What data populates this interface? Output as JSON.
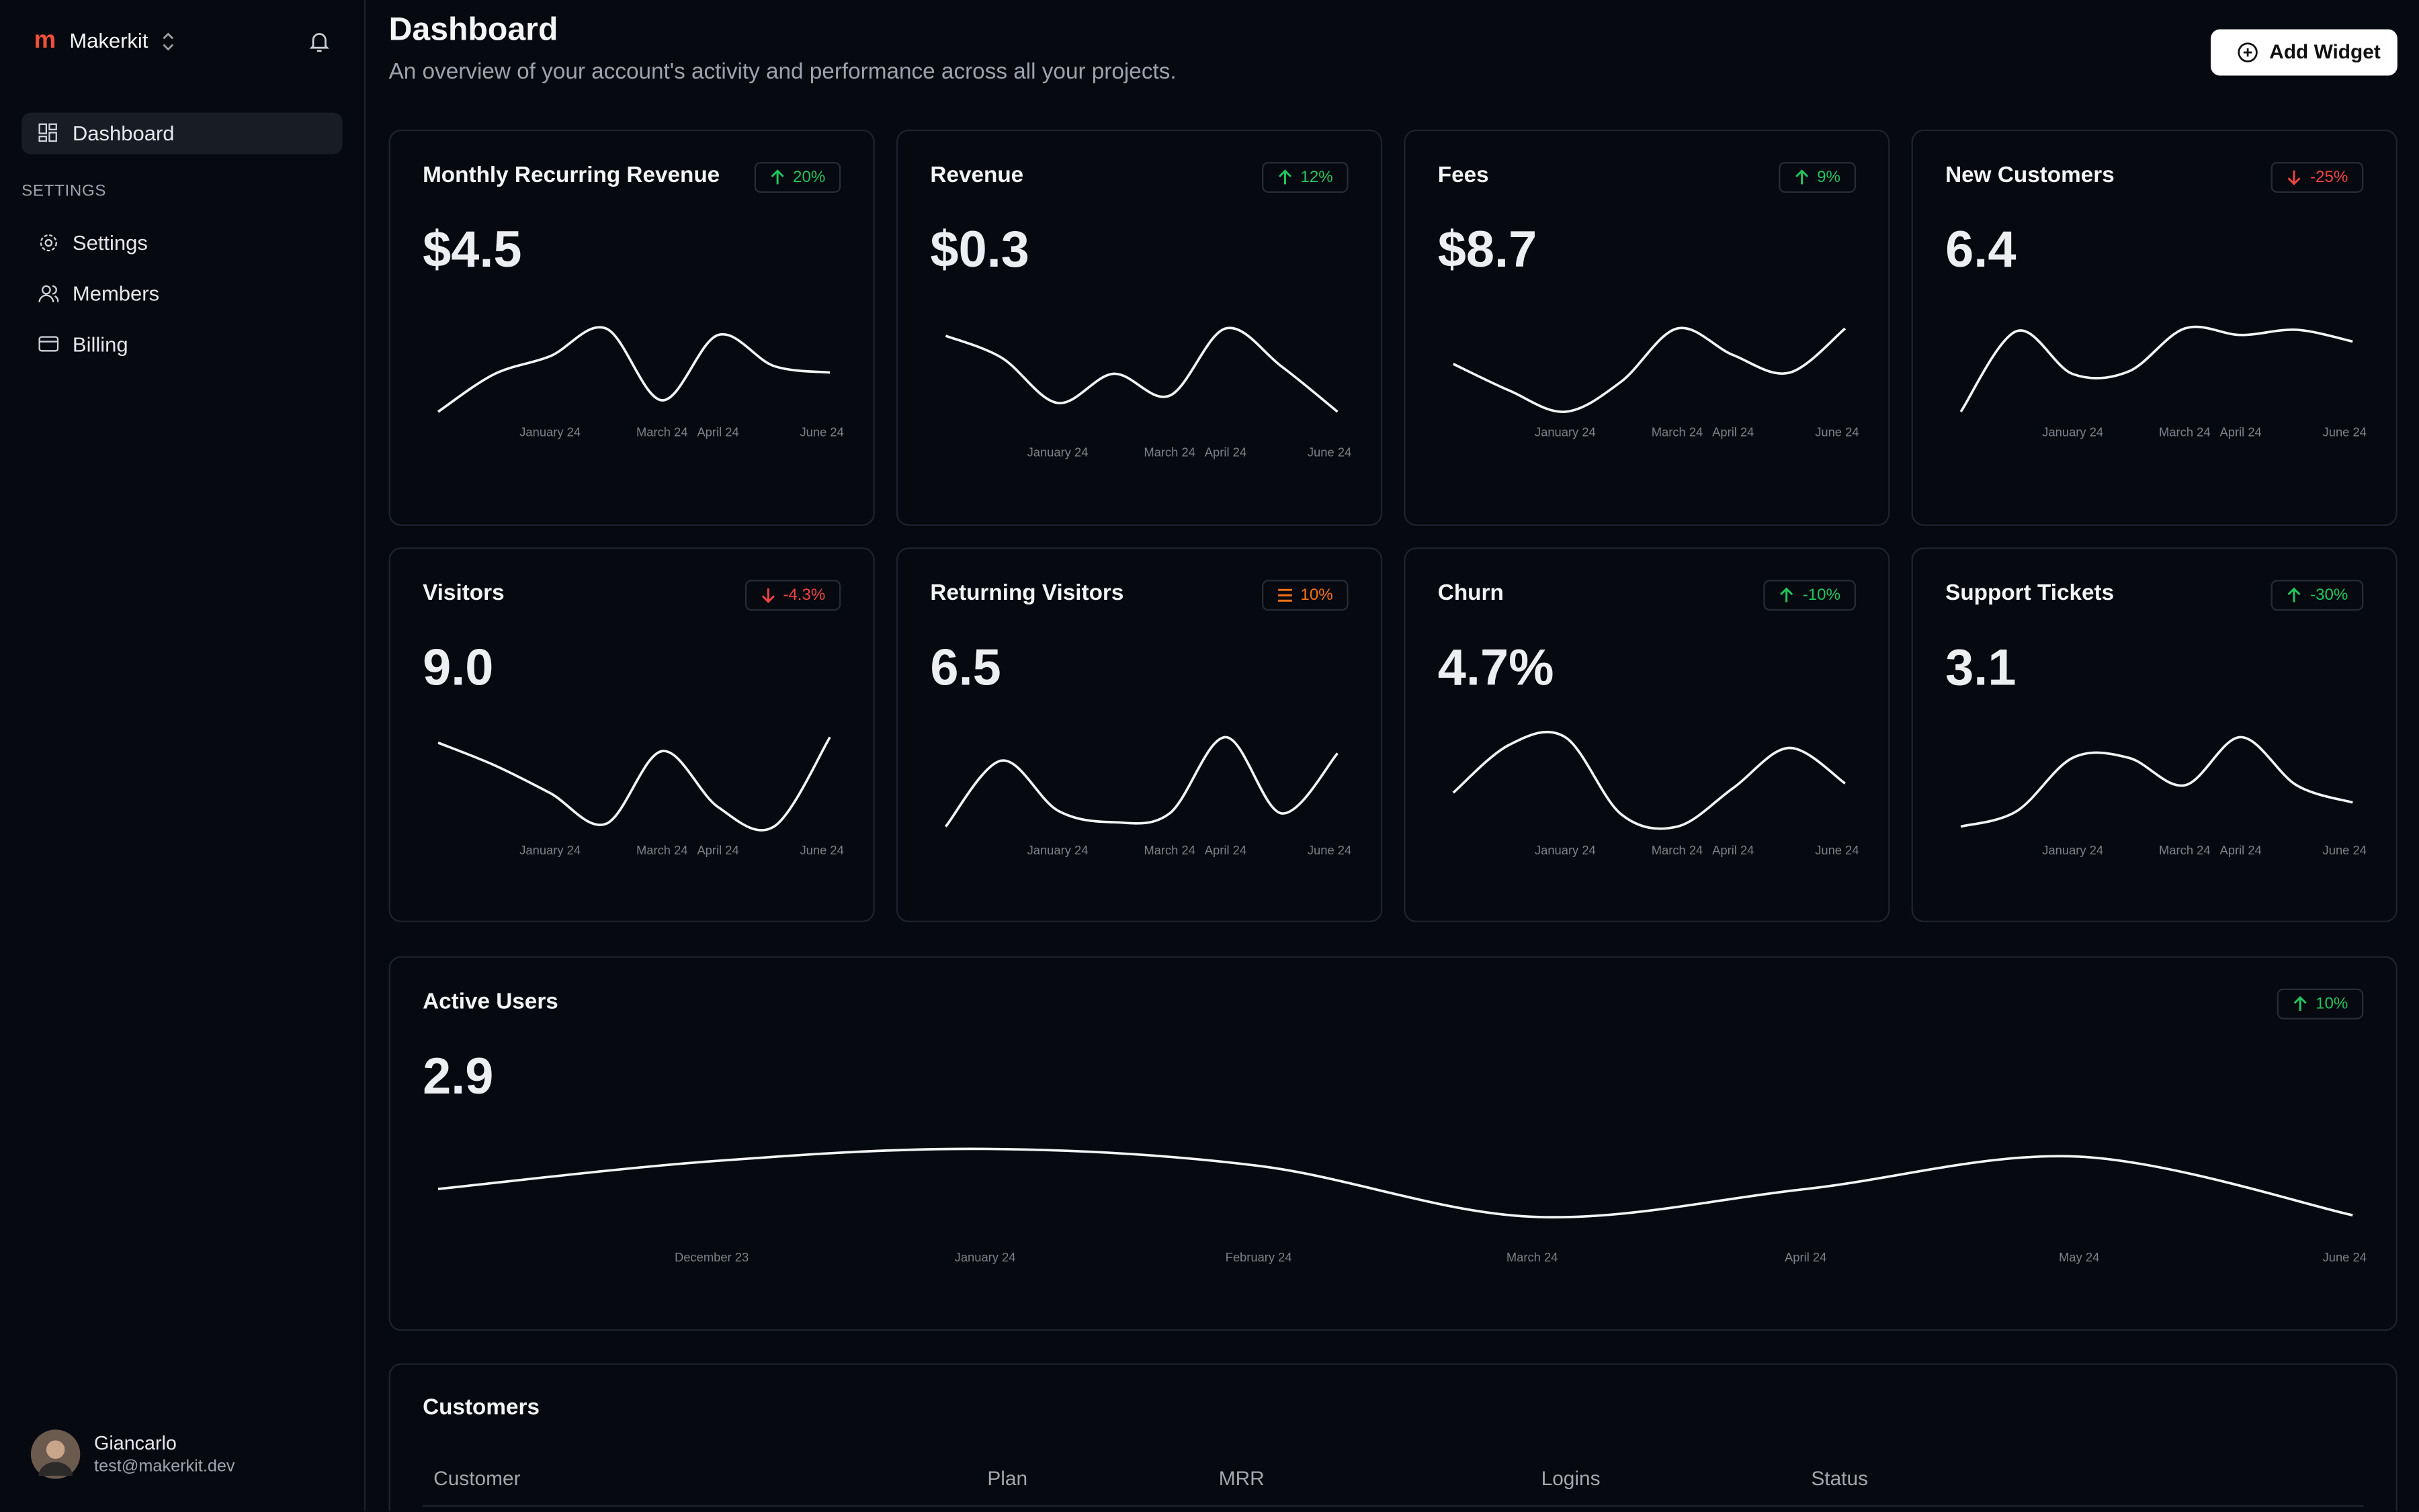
{
  "sidebar": {
    "brand": "Makerkit",
    "nav": [
      "Dashboard"
    ],
    "section_label": "SETTINGS",
    "settings_nav": [
      "Settings",
      "Members",
      "Billing"
    ],
    "user": {
      "name": "Giancarlo",
      "email": "test@makerkit.dev"
    }
  },
  "header": {
    "title": "Dashboard",
    "subtitle": "An overview of your account's activity and performance across all your projects.",
    "button": "Add Widget"
  },
  "chart_data": [
    {
      "type": "line",
      "title": "Monthly Recurring Revenue",
      "value_text": "$4.5",
      "badge": "20%",
      "trend": "up",
      "categories": [
        null,
        null,
        "January 24",
        null,
        "March 24",
        "April 24",
        null,
        "June 24"
      ],
      "values": [
        15,
        38,
        49,
        66,
        22,
        62,
        43,
        39
      ]
    },
    {
      "type": "line",
      "title": "Revenue",
      "value_text": "$0.3",
      "badge": "12%",
      "trend": "up",
      "categories": [
        null,
        null,
        "January 24",
        null,
        "March 24",
        "April 24",
        null,
        "June 24"
      ],
      "values": [
        73,
        58,
        27,
        47,
        32,
        78,
        52,
        21
      ]
    },
    {
      "type": "line",
      "title": "Fees",
      "value_text": "$8.7",
      "badge": "9%",
      "trend": "up",
      "categories": [
        null,
        null,
        "January 24",
        null,
        "March 24",
        "April 24",
        null,
        "June 24"
      ],
      "values": [
        45,
        30,
        18,
        35,
        65,
        50,
        40,
        65
      ]
    },
    {
      "type": "line",
      "title": "New Customers",
      "value_text": "6.4",
      "badge": "-25%",
      "trend": "down",
      "categories": [
        null,
        null,
        "January 24",
        null,
        "March 24",
        "April 24",
        null,
        "June 24"
      ],
      "values": [
        16,
        78,
        45,
        47,
        80,
        75,
        79,
        70
      ]
    },
    {
      "type": "line",
      "title": "Visitors",
      "value_text": "9.0",
      "badge": "-4.3%",
      "trend": "down",
      "categories": [
        null,
        null,
        "January 24",
        null,
        "March 24",
        "April 24",
        null,
        "June 24"
      ],
      "values": [
        73,
        65,
        55,
        44,
        70,
        50,
        43,
        75
      ]
    },
    {
      "type": "line",
      "title": "Returning Visitors",
      "value_text": "6.5",
      "badge": "10%",
      "trend": "stale",
      "categories": [
        null,
        null,
        "January 24",
        null,
        "March 24",
        "April 24",
        null,
        "June 24"
      ],
      "values": [
        29,
        74,
        40,
        32,
        38,
        90,
        38,
        79
      ]
    },
    {
      "type": "line",
      "title": "Churn",
      "value_text": "4.7%",
      "badge": "-10%",
      "trend": "up",
      "categories": [
        null,
        null,
        "January 24",
        null,
        "March 24",
        "April 24",
        null,
        "June 24"
      ],
      "values": [
        44,
        75,
        80,
        30,
        22,
        47,
        73,
        50
      ]
    },
    {
      "type": "line",
      "title": "Support Tickets",
      "value_text": "3.1",
      "badge": "-30%",
      "trend": "up",
      "categories": [
        null,
        null,
        "January 24",
        null,
        "March 24",
        "April 24",
        null,
        "June 24"
      ],
      "values": [
        26,
        35,
        66,
        66,
        50,
        78,
        50,
        40
      ]
    },
    {
      "type": "line",
      "title": "Active Users",
      "value_text": "2.9",
      "badge": "10%",
      "trend": "up",
      "categories": [
        null,
        "December 23",
        "January 24",
        "February 24",
        "March 24",
        "April 24",
        "May 24",
        "June 24"
      ],
      "values": [
        30,
        48,
        56,
        45,
        12,
        30,
        51,
        13
      ]
    }
  ],
  "customers": {
    "title": "Customers",
    "columns": [
      "Customer",
      "Plan",
      "MRR",
      "Logins",
      "Status"
    ]
  }
}
